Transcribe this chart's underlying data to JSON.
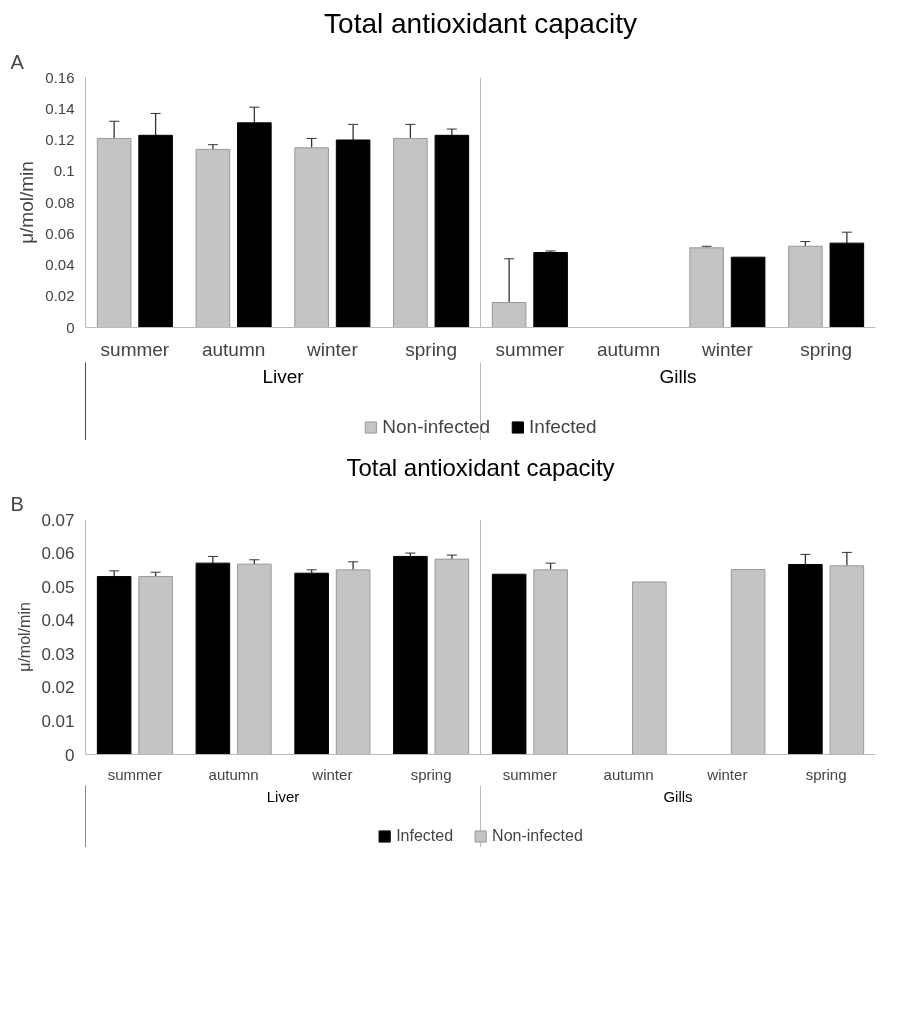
{
  "chart_data": [
    {
      "type": "bar",
      "title": "Total antioxidant capacity",
      "ylabel": "μ/mol/min",
      "annotations": [
        "A",
        "Liver",
        "Gills"
      ],
      "categories": [
        "summer",
        "autumn",
        "winter",
        "spring",
        "summer",
        "autumn",
        "winter",
        "spring"
      ],
      "series": [
        {
          "name": "Non-infected",
          "color": "#c4c4c4",
          "values": [
            0.121,
            0.114,
            0.115,
            0.121,
            0.016,
            null,
            0.051,
            0.052
          ],
          "errors": [
            0.011,
            0.003,
            0.006,
            0.009,
            0.028,
            null,
            0.001,
            0.003
          ]
        },
        {
          "name": "Infected",
          "color": "#000000",
          "values": [
            0.123,
            0.131,
            0.12,
            0.123,
            0.048,
            null,
            0.045,
            0.054
          ],
          "errors": [
            0.014,
            0.01,
            0.01,
            0.004,
            0.001,
            null,
            null,
            0.007
          ]
        }
      ],
      "ylim": [
        0,
        0.16
      ],
      "yticks": [
        0,
        0.02,
        0.04,
        0.06,
        0.08,
        0.1,
        0.12,
        0.14,
        0.16
      ],
      "grid": false,
      "legend": "bottom"
    },
    {
      "type": "bar",
      "title": "Total antioxidant capacity",
      "ylabel": "μ/mol/min",
      "annotations": [
        "B",
        "Liver",
        "Gills"
      ],
      "categories": [
        "summer",
        "autumn",
        "winter",
        "spring",
        "summer",
        "autumn",
        "winter",
        "spring"
      ],
      "series": [
        {
          "name": "Infected",
          "color": "#000000",
          "values": [
            0.053,
            0.057,
            0.054,
            0.059,
            0.0537,
            null,
            null,
            0.0566
          ],
          "errors": [
            0.0017,
            0.002,
            0.001,
            0.001,
            null,
            null,
            null,
            0.003
          ]
        },
        {
          "name": "Non-infected",
          "color": "#c4c4c4",
          "values": [
            0.053,
            0.0567,
            0.055,
            0.0582,
            0.055,
            0.0514,
            0.0551,
            0.0562
          ],
          "errors": [
            0.0013,
            0.0013,
            0.0024,
            0.0012,
            0.002,
            null,
            null,
            0.004
          ]
        }
      ],
      "ylim": [
        0,
        0.07
      ],
      "yticks": [
        0,
        0.01,
        0.02,
        0.03,
        0.04,
        0.05,
        0.06,
        0.07
      ],
      "grid": false,
      "legend": "bottom"
    }
  ]
}
